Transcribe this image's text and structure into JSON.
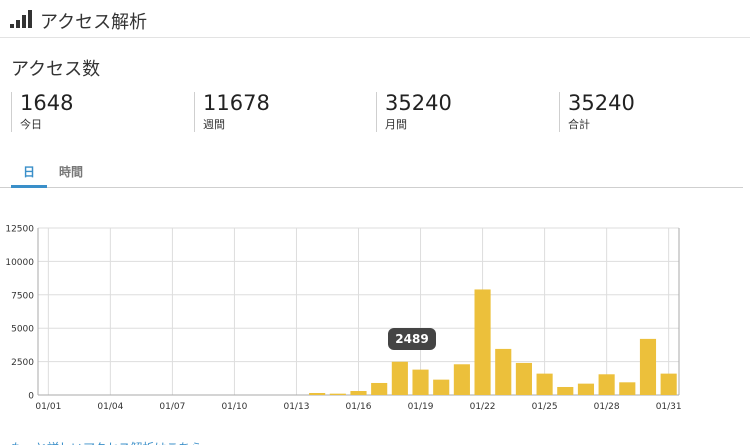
{
  "header": {
    "title": "アクセス解析",
    "icon": "signal-bars-icon"
  },
  "section": {
    "title": "アクセス数"
  },
  "stats": [
    {
      "value": "1648",
      "label": "今日"
    },
    {
      "value": "11678",
      "label": "週間"
    },
    {
      "value": "35240",
      "label": "月間"
    },
    {
      "value": "35240",
      "label": "合計"
    }
  ],
  "tabs": [
    {
      "label": "日",
      "active": true
    },
    {
      "label": "時間",
      "active": false
    }
  ],
  "tooltip": {
    "value": "2489"
  },
  "footer_link": "もっと詳しいアクセス解析はこちら",
  "colors": {
    "bar": "#ecc03b",
    "accent": "#3a8fc9",
    "grid": "#dddddd"
  },
  "chart_data": {
    "type": "bar",
    "ylim": [
      0,
      12500
    ],
    "yticks": [
      "12500",
      "10000",
      "7500",
      "5000",
      "2500",
      "0"
    ],
    "xtick_labels": [
      "01/01",
      "01/04",
      "01/07",
      "01/10",
      "01/13",
      "01/16",
      "01/19",
      "01/22",
      "01/25",
      "01/28",
      "01/31"
    ],
    "categories": [
      "01/01",
      "01/02",
      "01/03",
      "01/04",
      "01/05",
      "01/06",
      "01/07",
      "01/08",
      "01/09",
      "01/10",
      "01/11",
      "01/12",
      "01/13",
      "01/14",
      "01/15",
      "01/16",
      "01/17",
      "01/18",
      "01/19",
      "01/20",
      "01/21",
      "01/22",
      "01/23",
      "01/24",
      "01/25",
      "01/26",
      "01/27",
      "01/28",
      "01/29",
      "01/30",
      "01/31"
    ],
    "values": [
      0,
      0,
      0,
      0,
      0,
      0,
      0,
      0,
      0,
      0,
      0,
      0,
      0,
      150,
      100,
      300,
      900,
      2489,
      1900,
      1150,
      2300,
      7900,
      3450,
      2400,
      1600,
      600,
      850,
      1550,
      950,
      4200,
      1600
    ]
  }
}
